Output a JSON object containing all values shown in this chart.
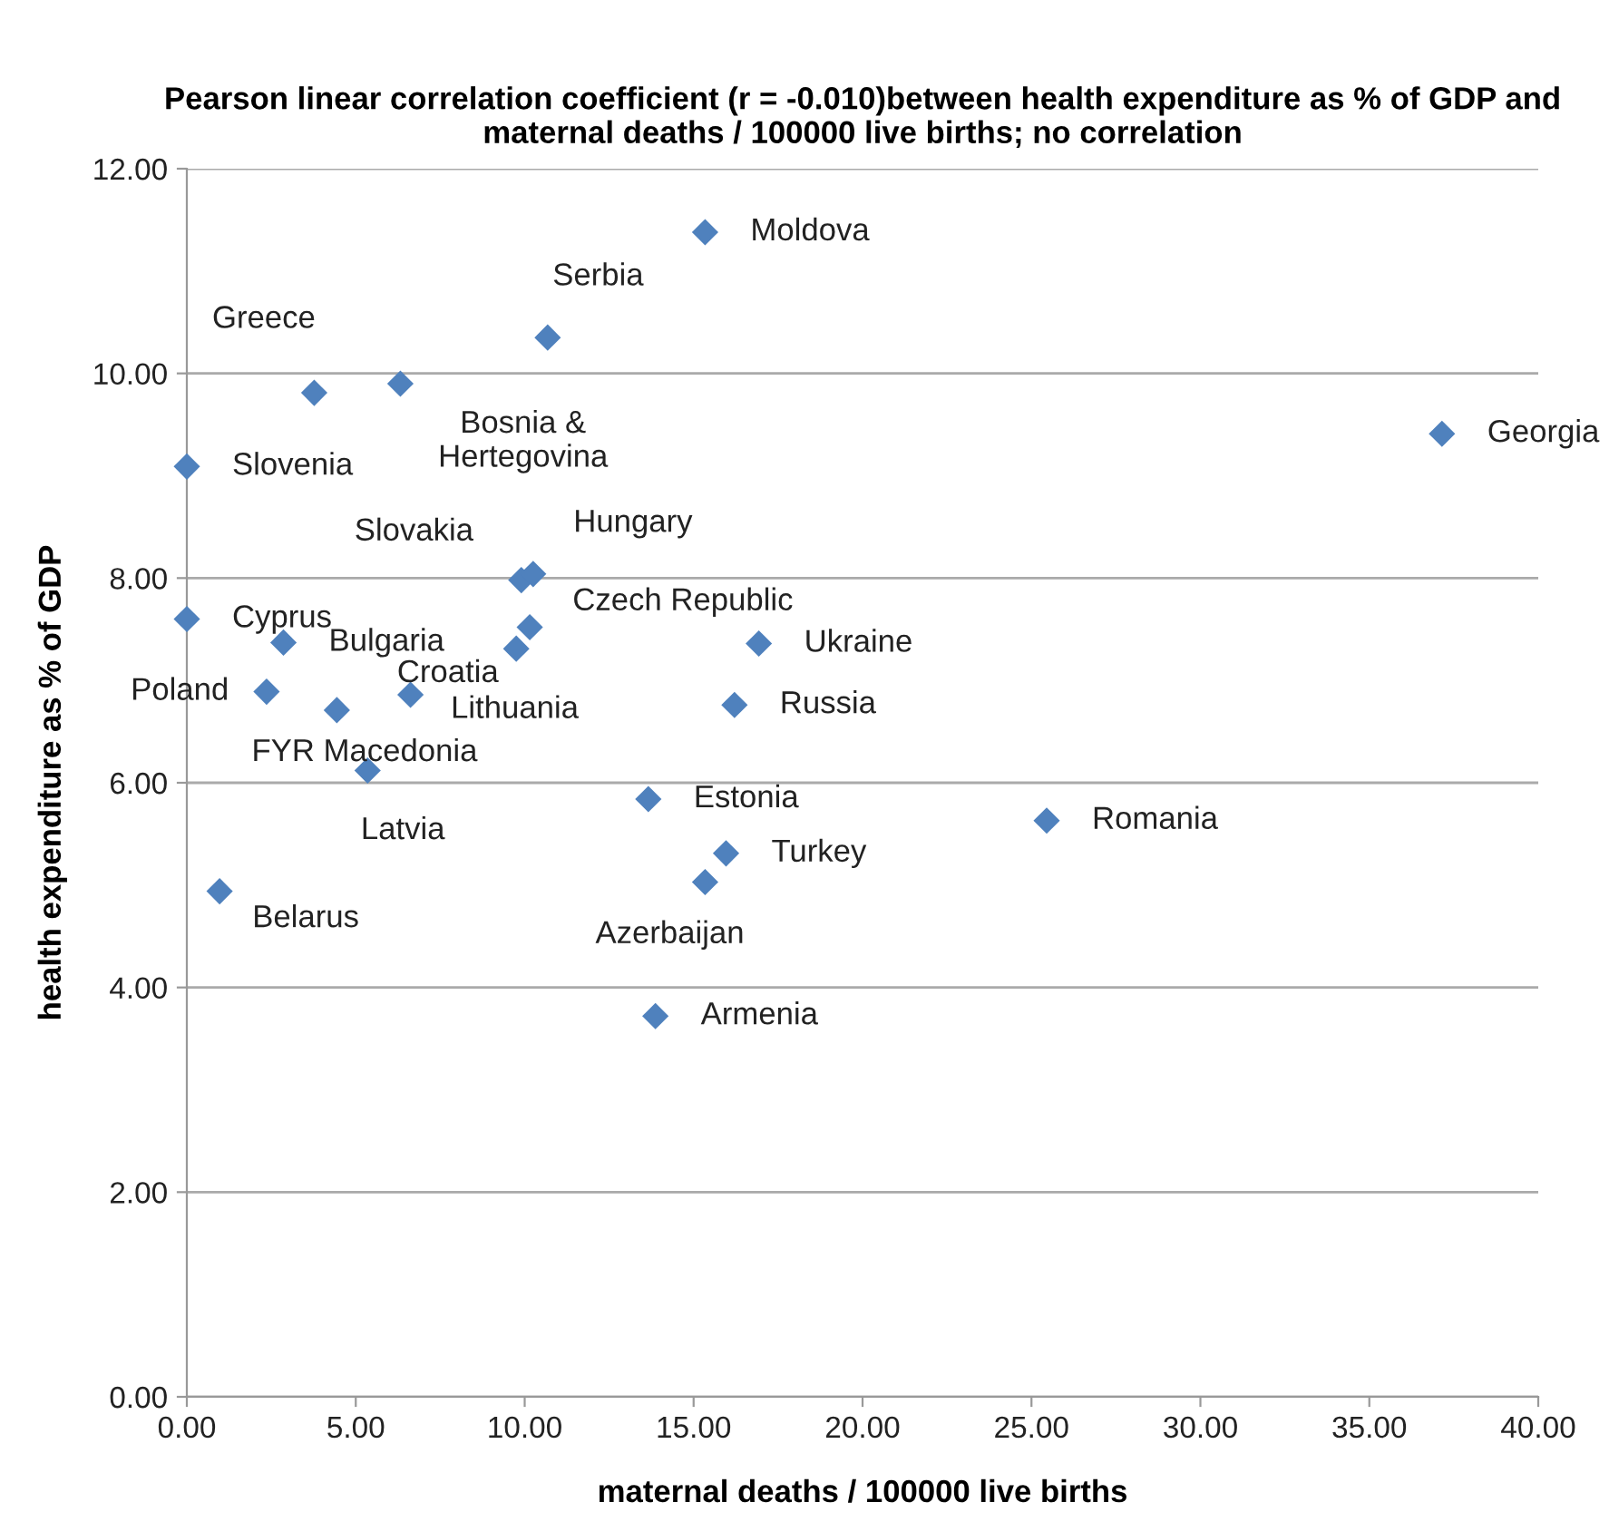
{
  "chart_data": {
    "type": "scatter",
    "title": "Pearson linear correlation coefficient (r = -0.010)between health expenditure as % of GDP and maternal deaths / 100000 live births; no correlation",
    "xlabel": "maternal deaths / 100000 live births",
    "ylabel": "health expenditure as % of GDP",
    "series": [
      {
        "color": "#4f81bd",
        "x": [
          15.34,
          10.68,
          3.77,
          6.32,
          0,
          37.15,
          9.9,
          10.25,
          10.15,
          0,
          2.86,
          9.75,
          16.93,
          2.36,
          6.62,
          4.44,
          16.21,
          5.35,
          13.66,
          25.45,
          15.96,
          15.34,
          0.97,
          13.87
        ],
        "values": [
          11.38,
          10.35,
          9.81,
          9.9,
          9.09,
          9.41,
          7.98,
          8.04,
          7.52,
          7.6,
          7.37,
          7.31,
          7.36,
          6.89,
          6.86,
          6.71,
          6.76,
          6.12,
          5.84,
          5.63,
          5.31,
          5.03,
          4.94,
          3.72
        ]
      }
    ],
    "annotations": [
      {
        "text": "Moldova",
        "x": 15.34,
        "y": 11.38
      },
      {
        "text": "Serbia",
        "x": 10.68,
        "y": 10.35
      },
      {
        "text": "Greece",
        "x": 3.77,
        "y": 9.81
      },
      {
        "text": "Bosnia &\nHertegovina",
        "x": 6.32,
        "y": 9.9
      },
      {
        "text": "Slovenia",
        "x": 0,
        "y": 9.09
      },
      {
        "text": "Georgia",
        "x": 37.15,
        "y": 9.41
      },
      {
        "text": "Slovakia",
        "x": 9.9,
        "y": 7.98
      },
      {
        "text": "Hungary",
        "x": 10.25,
        "y": 8.04
      },
      {
        "text": "Czech Republic",
        "x": 10.15,
        "y": 7.52
      },
      {
        "text": "Cyprus",
        "x": 0,
        "y": 7.6
      },
      {
        "text": "Bulgaria",
        "x": 2.86,
        "y": 7.37
      },
      {
        "text": "Croatia",
        "x": 9.75,
        "y": 7.31
      },
      {
        "text": "Ukraine",
        "x": 16.93,
        "y": 7.36
      },
      {
        "text": "Poland",
        "x": 2.36,
        "y": 6.89
      },
      {
        "text": "Lithuania",
        "x": 6.62,
        "y": 6.86
      },
      {
        "text": "FYR Macedonia",
        "x": 4.44,
        "y": 6.71
      },
      {
        "text": "Russia",
        "x": 16.21,
        "y": 6.76
      },
      {
        "text": "Latvia",
        "x": 5.35,
        "y": 6.12
      },
      {
        "text": "Estonia",
        "x": 13.66,
        "y": 5.84
      },
      {
        "text": "Romania",
        "x": 25.45,
        "y": 5.63
      },
      {
        "text": "Turkey",
        "x": 15.96,
        "y": 5.31
      },
      {
        "text": "Azerbaijan",
        "x": 15.34,
        "y": 5.03
      },
      {
        "text": "Belarus",
        "x": 0.97,
        "y": 4.94
      },
      {
        "text": "Armenia",
        "x": 13.87,
        "y": 3.72
      }
    ],
    "xlim": [
      0,
      40
    ],
    "xticks": [
      {
        "value": 0,
        "label": "0.00"
      },
      {
        "value": 5,
        "label": "5.00"
      },
      {
        "value": 10,
        "label": "10.00"
      },
      {
        "value": 15,
        "label": "15.00"
      },
      {
        "value": 20,
        "label": "20.00"
      },
      {
        "value": 25,
        "label": "25.00"
      },
      {
        "value": 30,
        "label": "30.00"
      },
      {
        "value": 35,
        "label": "35.00"
      },
      {
        "value": 40,
        "label": "40.00"
      }
    ],
    "ylim": [
      0,
      12
    ],
    "yticks": [
      {
        "value": 0,
        "label": "0.00"
      },
      {
        "value": 2,
        "label": "2.00"
      },
      {
        "value": 4,
        "label": "4.00"
      },
      {
        "value": 6,
        "label": "6.00"
      },
      {
        "value": 8,
        "label": "8.00"
      },
      {
        "value": 10,
        "label": "10.00"
      },
      {
        "value": 12,
        "label": "12.00"
      }
    ],
    "grid": "y",
    "marker": "diamond"
  }
}
